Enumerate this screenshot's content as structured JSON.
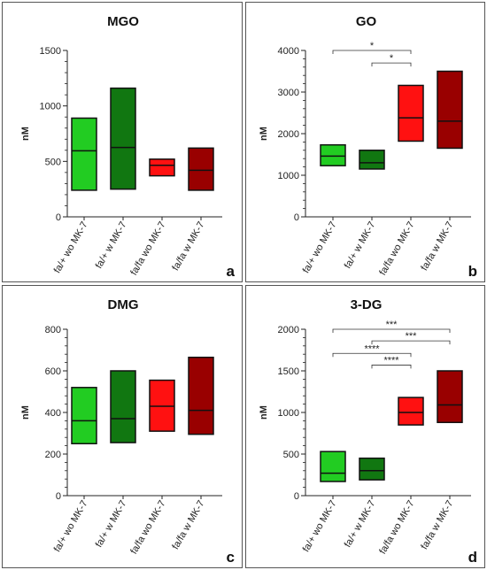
{
  "chart_data": [
    {
      "type": "floating-bar",
      "title": "MGO",
      "panel_label": "a",
      "ylabel": "nM",
      "ylim": [
        0,
        1500
      ],
      "yticks": [
        0,
        500,
        1000,
        1500
      ],
      "categories": [
        "fa/+ wo MK-7",
        "fa/+ w MK-7",
        "fa/fa wo MK-7",
        "fa/fa w MK-7"
      ],
      "colors": [
        "#22cc22",
        "#117711",
        "#ff1111",
        "#990000"
      ],
      "min": [
        240,
        250,
        370,
        240
      ],
      "median": [
        595,
        625,
        465,
        420
      ],
      "max": [
        890,
        1160,
        520,
        620
      ],
      "significance": []
    },
    {
      "type": "floating-bar",
      "title": "GO",
      "panel_label": "b",
      "ylabel": "nM",
      "ylim": [
        0,
        4000
      ],
      "yticks": [
        0,
        1000,
        2000,
        3000,
        4000
      ],
      "categories": [
        "fa/+ wo MK-7",
        "fa/+ w MK-7",
        "fa/fa wo MK-7",
        "fa/fa w MK-7"
      ],
      "colors": [
        "#22cc22",
        "#117711",
        "#ff1111",
        "#990000"
      ],
      "min": [
        1230,
        1150,
        1820,
        1650
      ],
      "median": [
        1460,
        1300,
        2380,
        2300
      ],
      "max": [
        1730,
        1600,
        3160,
        3500
      ],
      "significance": [
        {
          "from": 0,
          "to": 2,
          "y": 4000,
          "label": "*"
        },
        {
          "from": 1,
          "to": 2,
          "y": 3700,
          "label": "*"
        }
      ]
    },
    {
      "type": "floating-bar",
      "title": "DMG",
      "panel_label": "c",
      "ylabel": "nM",
      "ylim": [
        0,
        800
      ],
      "yticks": [
        0,
        200,
        400,
        600,
        800
      ],
      "categories": [
        "fa/+ wo MK-7",
        "fa/+ w MK-7",
        "fa/fa wo MK-7",
        "fa/fa w MK-7"
      ],
      "colors": [
        "#22cc22",
        "#117711",
        "#ff1111",
        "#990000"
      ],
      "min": [
        250,
        255,
        310,
        295
      ],
      "median": [
        360,
        370,
        430,
        410
      ],
      "max": [
        520,
        600,
        555,
        665
      ],
      "significance": []
    },
    {
      "type": "floating-bar",
      "title": "3-DG",
      "panel_label": "d",
      "ylabel": "nM",
      "ylim": [
        0,
        2000
      ],
      "yticks": [
        0,
        500,
        1000,
        1500,
        2000
      ],
      "categories": [
        "fa/+ wo MK-7",
        "fa/+ w MK-7",
        "fa/fa wo MK-7",
        "fa/fa w MK-7"
      ],
      "colors": [
        "#22cc22",
        "#117711",
        "#ff1111",
        "#990000"
      ],
      "min": [
        170,
        190,
        850,
        880
      ],
      "median": [
        270,
        300,
        1000,
        1090
      ],
      "max": [
        530,
        450,
        1180,
        1500
      ],
      "significance": [
        {
          "from": 0,
          "to": 3,
          "y": 2000,
          "label": "***"
        },
        {
          "from": 1,
          "to": 3,
          "y": 1860,
          "label": "***"
        },
        {
          "from": 0,
          "to": 2,
          "y": 1710,
          "label": "****"
        },
        {
          "from": 1,
          "to": 2,
          "y": 1570,
          "label": "****"
        }
      ]
    }
  ]
}
